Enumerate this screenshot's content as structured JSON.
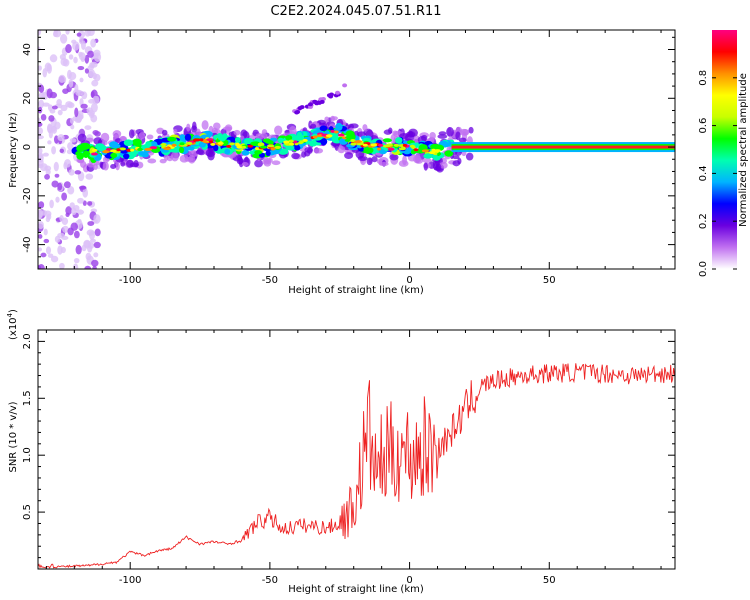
{
  "title": "C2E2.2024.045.07.51.R11",
  "chart_data": [
    {
      "type": "heatmap",
      "xlabel": "Height of straight line (km)",
      "ylabel": "Frequency (Hz)",
      "xlim": [
        -133,
        95
      ],
      "ylim": [
        -50,
        48
      ],
      "xticks": [
        -100,
        -50,
        0,
        50
      ],
      "yticks": [
        -40,
        -20,
        0,
        20,
        40
      ],
      "colorbar": {
        "label": "Normalized spectral amplitude",
        "range": [
          0,
          1
        ],
        "ticks": [
          "0.0",
          "0.2",
          "0.4",
          "0.6",
          "0.8"
        ],
        "colormap": [
          "#ffffff",
          "#c070f0",
          "#6a00e0",
          "#0000ff",
          "#00b4ff",
          "#00ffb0",
          "#00ff00",
          "#c8ff00",
          "#ffff00",
          "#ff9000",
          "#ff0000",
          "#ff0080"
        ]
      },
      "ridge": {
        "x": [
          -130,
          -120,
          -110,
          -100,
          -90,
          -80,
          -75,
          -70,
          -65,
          -60,
          -55,
          -50,
          -45,
          -40,
          -35,
          -30,
          -25,
          -20,
          -15,
          -10,
          -5,
          0,
          5,
          10,
          15,
          20,
          40,
          60,
          80,
          95
        ],
        "y": [
          -5,
          -3,
          -2,
          -1,
          0,
          1,
          3,
          2,
          1,
          0,
          -1,
          0,
          1,
          2,
          4,
          5,
          6,
          2,
          1,
          0,
          0,
          0,
          -1,
          -2,
          0,
          0,
          0,
          0,
          0,
          0
        ]
      },
      "branch": {
        "x": [
          -42,
          -38,
          -34,
          -30,
          -26,
          -23
        ],
        "y": [
          14,
          16,
          18,
          20,
          22,
          25
        ]
      }
    },
    {
      "type": "line",
      "xlabel": "Height of straight line (km)",
      "ylabel": "SNR (10 * v/v)",
      "scale_label": "(x10",
      "scale_exp": "4",
      "xlim": [
        -133,
        95
      ],
      "ylim": [
        0,
        2.1
      ],
      "xticks": [
        -100,
        -50,
        0,
        50
      ],
      "yticks": [
        0.5,
        1.0,
        1.5,
        2.0
      ],
      "series_color": "#ee2222",
      "x": [
        -133,
        -125,
        -115,
        -105,
        -100,
        -95,
        -90,
        -85,
        -80,
        -75,
        -70,
        -65,
        -60,
        -55,
        -50,
        -45,
        -40,
        -35,
        -30,
        -25,
        -20,
        -17,
        -15,
        -12,
        -10,
        -5,
        0,
        5,
        10,
        15,
        20,
        25,
        30,
        40,
        50,
        60,
        70,
        80,
        90,
        95
      ],
      "values": [
        0.01,
        0.02,
        0.03,
        0.06,
        0.15,
        0.12,
        0.16,
        0.18,
        0.28,
        0.22,
        0.24,
        0.22,
        0.25,
        0.4,
        0.45,
        0.35,
        0.38,
        0.38,
        0.36,
        0.4,
        0.55,
        0.9,
        1.25,
        0.85,
        0.95,
        1.05,
        1.0,
        1.05,
        1.05,
        1.2,
        1.4,
        1.6,
        1.65,
        1.7,
        1.72,
        1.73,
        1.72,
        1.7,
        1.72,
        1.72
      ]
    }
  ]
}
